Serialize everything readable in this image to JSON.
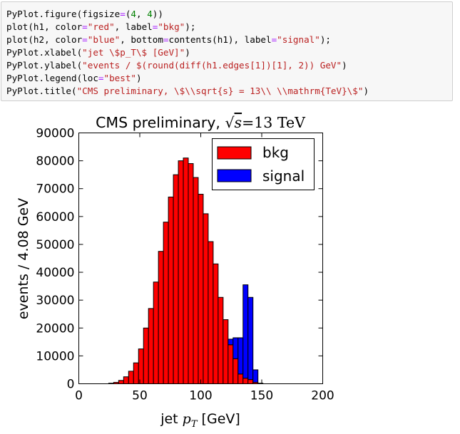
{
  "code_cell": {
    "lines": [
      [
        {
          "t": "PyPlot.figure(figsize",
          "c": "p"
        },
        {
          "t": "=",
          "c": "k"
        },
        {
          "t": "(",
          "c": "p"
        },
        {
          "t": "4",
          "c": "n"
        },
        {
          "t": ", ",
          "c": "p"
        },
        {
          "t": "4",
          "c": "n"
        },
        {
          "t": "))",
          "c": "p"
        }
      ],
      [
        {
          "t": "plot(h1, color",
          "c": "p"
        },
        {
          "t": "=",
          "c": "k"
        },
        {
          "t": "\"red\"",
          "c": "s"
        },
        {
          "t": ", label",
          "c": "p"
        },
        {
          "t": "=",
          "c": "k"
        },
        {
          "t": "\"bkg\"",
          "c": "s"
        },
        {
          "t": ");",
          "c": "p"
        }
      ],
      [
        {
          "t": "plot(h2, color",
          "c": "p"
        },
        {
          "t": "=",
          "c": "k"
        },
        {
          "t": "\"blue\"",
          "c": "s"
        },
        {
          "t": ", bottom",
          "c": "p"
        },
        {
          "t": "=",
          "c": "k"
        },
        {
          "t": "contents(h1), label",
          "c": "p"
        },
        {
          "t": "=",
          "c": "k"
        },
        {
          "t": "\"signal\"",
          "c": "s"
        },
        {
          "t": ");",
          "c": "p"
        }
      ],
      [
        {
          "t": "PyPlot.xlabel(",
          "c": "p"
        },
        {
          "t": "\"jet \\$p_T\\$ [GeV]\"",
          "c": "s"
        },
        {
          "t": ")",
          "c": "p"
        }
      ],
      [
        {
          "t": "PyPlot.ylabel(",
          "c": "p"
        },
        {
          "t": "\"events / $(round(diff(h1.edges[1])[1], 2)) GeV\"",
          "c": "s"
        },
        {
          "t": ")",
          "c": "p"
        }
      ],
      [
        {
          "t": "PyPlot.legend(loc",
          "c": "p"
        },
        {
          "t": "=",
          "c": "k"
        },
        {
          "t": "\"best\"",
          "c": "s"
        },
        {
          "t": ")",
          "c": "p"
        }
      ],
      [
        {
          "t": "PyPlot.title(",
          "c": "p"
        },
        {
          "t": "\"CMS preliminary, \\$\\\\sqrt{s} = 13\\\\ \\\\mathrm{TeV}\\$\"",
          "c": "s"
        },
        {
          "t": ")",
          "c": "p"
        }
      ]
    ]
  },
  "colors": {
    "bkg": "#ff0000",
    "signal": "#0000ff",
    "edge": "#000000"
  },
  "chart_data": {
    "type": "bar",
    "stacked": true,
    "title_parts": {
      "prefix": "CMS preliminary, ",
      "sqrt": "√",
      "s": "s",
      "eq": "=13",
      "unit": "TeV"
    },
    "xlabel_parts": {
      "prefix": "jet ",
      "var": "p",
      "sub": "T",
      "suffix": " [GeV]"
    },
    "ylabel": "events / 4.08 GeV",
    "xlim": [
      0,
      200
    ],
    "ylim": [
      0,
      90000
    ],
    "xticks": [
      0,
      50,
      100,
      150,
      200
    ],
    "yticks": [
      0,
      10000,
      20000,
      30000,
      40000,
      50000,
      60000,
      70000,
      80000,
      90000
    ],
    "bin_width": 4.08,
    "bin_start": 24.5,
    "legend": {
      "placement": "top-right",
      "entries": [
        "bkg",
        "signal"
      ]
    },
    "series": [
      {
        "name": "bkg",
        "color": "#ff0000",
        "values": [
          200,
          500,
          1200,
          2500,
          4500,
          7500,
          12500,
          20000,
          27000,
          36500,
          47500,
          58000,
          67000,
          75000,
          80000,
          81000,
          79000,
          74000,
          68000,
          61000,
          51000,
          43000,
          31000,
          23000,
          14000,
          9000,
          3500,
          2000,
          1500,
          500,
          200
        ]
      },
      {
        "name": "signal",
        "color": "#0000ff",
        "values": [
          0,
          0,
          0,
          0,
          0,
          0,
          0,
          0,
          0,
          0,
          0,
          0,
          0,
          0,
          0,
          0,
          0,
          0,
          0,
          0,
          0,
          0,
          0,
          0,
          2000,
          7500,
          13000,
          33500,
          29500,
          4500,
          0
        ]
      }
    ]
  }
}
